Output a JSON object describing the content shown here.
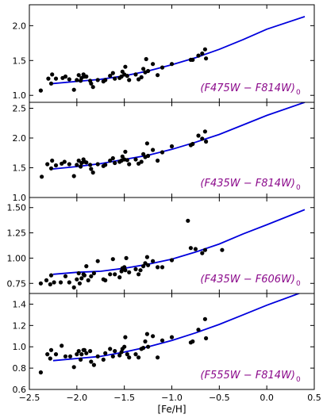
{
  "chart_data": {
    "type": "scatter",
    "xlabel": "[Fe/H]",
    "xlim": [
      -2.5,
      0.5
    ],
    "x_ticks": [
      "−2.5",
      "−2.0",
      "−1.5",
      "−1.0",
      "−0.5",
      "0.0",
      "0.5"
    ],
    "x_tick_values": [
      -2.5,
      -2.0,
      -1.5,
      -1.0,
      -0.5,
      0.0,
      0.5
    ],
    "line_color": "#0000dd",
    "point_color": "#000000",
    "label_color": "#8b0a8b",
    "panels": [
      {
        "label_main": "(F475W − F814W)",
        "label_sub": "0",
        "ylim": [
          0.9,
          2.3
        ],
        "y_ticks": [
          "1.0",
          "1.5",
          "2.0"
        ],
        "y_tick_values": [
          1.0,
          1.5,
          2.0
        ],
        "fit": [
          [
            -2.25,
            1.17
          ],
          [
            -2.0,
            1.2
          ],
          [
            -1.75,
            1.23
          ],
          [
            -1.5,
            1.28
          ],
          [
            -1.25,
            1.35
          ],
          [
            -1.0,
            1.44
          ],
          [
            -0.75,
            1.54
          ],
          [
            -0.5,
            1.66
          ],
          [
            -0.25,
            1.8
          ],
          [
            0.0,
            1.95
          ],
          [
            0.4,
            2.13
          ]
        ],
        "points": [
          [
            -2.38,
            1.07
          ],
          [
            -2.3,
            1.24
          ],
          [
            -2.27,
            1.17
          ],
          [
            -2.26,
            1.3
          ],
          [
            -2.22,
            1.24
          ],
          [
            -2.15,
            1.25
          ],
          [
            -2.12,
            1.27
          ],
          [
            -2.08,
            1.23
          ],
          [
            -2.03,
            1.08
          ],
          [
            -2.0,
            1.22
          ],
          [
            -1.98,
            1.29
          ],
          [
            -1.96,
            1.21
          ],
          [
            -1.95,
            1.25
          ],
          [
            -1.93,
            1.3
          ],
          [
            -1.92,
            1.27
          ],
          [
            -1.9,
            1.27
          ],
          [
            -1.86,
            1.21
          ],
          [
            -1.85,
            1.17
          ],
          [
            -1.83,
            1.12
          ],
          [
            -1.78,
            1.22
          ],
          [
            -1.72,
            1.2
          ],
          [
            -1.7,
            1.22
          ],
          [
            -1.65,
            1.28
          ],
          [
            -1.62,
            1.32
          ],
          [
            -1.6,
            1.24
          ],
          [
            -1.55,
            1.25
          ],
          [
            -1.53,
            1.27
          ],
          [
            -1.52,
            1.34
          ],
          [
            -1.5,
            1.3
          ],
          [
            -1.49,
            1.41
          ],
          [
            -1.47,
            1.28
          ],
          [
            -1.45,
            1.22
          ],
          [
            -1.38,
            1.3
          ],
          [
            -1.35,
            1.23
          ],
          [
            -1.32,
            1.26
          ],
          [
            -1.3,
            1.38
          ],
          [
            -1.28,
            1.33
          ],
          [
            -1.27,
            1.52
          ],
          [
            -1.25,
            1.35
          ],
          [
            -1.2,
            1.45
          ],
          [
            -1.15,
            1.29
          ],
          [
            -1.1,
            1.4
          ],
          [
            -1.0,
            1.45
          ],
          [
            -0.8,
            1.51
          ],
          [
            -0.78,
            1.51
          ],
          [
            -0.72,
            1.57
          ],
          [
            -0.68,
            1.6
          ],
          [
            -0.65,
            1.66
          ],
          [
            -0.64,
            1.53
          ]
        ]
      },
      {
        "label_main": "(F435W − F814W)",
        "label_sub": "0",
        "ylim": [
          1.0,
          2.6
        ],
        "y_ticks": [
          "1.0",
          "1.5",
          "2.0",
          "2.5"
        ],
        "y_tick_values": [
          1.0,
          1.5,
          2.0,
          2.5
        ],
        "fit": [
          [
            -2.25,
            1.48
          ],
          [
            -2.0,
            1.52
          ],
          [
            -1.75,
            1.57
          ],
          [
            -1.5,
            1.64
          ],
          [
            -1.25,
            1.71
          ],
          [
            -1.0,
            1.81
          ],
          [
            -0.75,
            1.93
          ],
          [
            -0.5,
            2.06
          ],
          [
            -0.25,
            2.22
          ],
          [
            0.0,
            2.38
          ],
          [
            0.4,
            2.6
          ]
        ],
        "points": [
          [
            -2.37,
            1.35
          ],
          [
            -2.31,
            1.56
          ],
          [
            -2.27,
            1.49
          ],
          [
            -2.26,
            1.62
          ],
          [
            -2.22,
            1.54
          ],
          [
            -2.16,
            1.57
          ],
          [
            -2.13,
            1.6
          ],
          [
            -2.08,
            1.56
          ],
          [
            -2.03,
            1.36
          ],
          [
            -2.0,
            1.55
          ],
          [
            -1.98,
            1.62
          ],
          [
            -1.96,
            1.52
          ],
          [
            -1.95,
            1.58
          ],
          [
            -1.93,
            1.64
          ],
          [
            -1.92,
            1.6
          ],
          [
            -1.9,
            1.59
          ],
          [
            -1.86,
            1.55
          ],
          [
            -1.85,
            1.48
          ],
          [
            -1.83,
            1.42
          ],
          [
            -1.78,
            1.56
          ],
          [
            -1.72,
            1.53
          ],
          [
            -1.7,
            1.55
          ],
          [
            -1.65,
            1.62
          ],
          [
            -1.62,
            1.66
          ],
          [
            -1.6,
            1.58
          ],
          [
            -1.55,
            1.6
          ],
          [
            -1.53,
            1.62
          ],
          [
            -1.52,
            1.69
          ],
          [
            -1.5,
            1.64
          ],
          [
            -1.49,
            1.77
          ],
          [
            -1.47,
            1.63
          ],
          [
            -1.45,
            1.56
          ],
          [
            -1.38,
            1.64
          ],
          [
            -1.35,
            1.57
          ],
          [
            -1.32,
            1.6
          ],
          [
            -1.3,
            1.73
          ],
          [
            -1.28,
            1.68
          ],
          [
            -1.26,
            1.91
          ],
          [
            -1.25,
            1.7
          ],
          [
            -1.2,
            1.8
          ],
          [
            -1.15,
            1.62
          ],
          [
            -1.1,
            1.76
          ],
          [
            -1.0,
            1.86
          ],
          [
            -0.8,
            1.88
          ],
          [
            -0.78,
            1.9
          ],
          [
            -0.72,
            2.04
          ],
          [
            -0.68,
            1.99
          ],
          [
            -0.65,
            2.11
          ],
          [
            -0.64,
            1.94
          ]
        ]
      },
      {
        "label_main": "(F435W − F606W)",
        "label_sub": "0",
        "ylim": [
          0.65,
          1.6
        ],
        "y_ticks": [
          "0.75",
          "1.00",
          "1.25",
          "1.50"
        ],
        "y_tick_values": [
          0.75,
          1.0,
          1.25,
          1.5
        ],
        "fit": [
          [
            -2.25,
            0.84
          ],
          [
            -2.0,
            0.86
          ],
          [
            -1.75,
            0.87
          ],
          [
            -1.5,
            0.9
          ],
          [
            -1.25,
            0.94
          ],
          [
            -1.0,
            0.99
          ],
          [
            -0.75,
            1.06
          ],
          [
            -0.5,
            1.14
          ],
          [
            -0.25,
            1.24
          ],
          [
            0.0,
            1.33
          ],
          [
            0.4,
            1.48
          ]
        ],
        "points": [
          [
            -2.38,
            0.75
          ],
          [
            -2.32,
            0.78
          ],
          [
            -2.28,
            0.74
          ],
          [
            -2.27,
            0.83
          ],
          [
            -2.24,
            0.76
          ],
          [
            -2.17,
            0.76
          ],
          [
            -2.12,
            0.82
          ],
          [
            -2.08,
            0.76
          ],
          [
            -2.03,
            0.71
          ],
          [
            -2.0,
            0.79
          ],
          [
            -1.98,
            0.85
          ],
          [
            -1.97,
            0.75
          ],
          [
            -1.95,
            0.8
          ],
          [
            -1.93,
            0.84
          ],
          [
            -1.92,
            0.83
          ],
          [
            -1.9,
            0.92
          ],
          [
            -1.88,
            0.78
          ],
          [
            -1.85,
            0.82
          ],
          [
            -1.82,
            0.85
          ],
          [
            -1.78,
            0.97
          ],
          [
            -1.72,
            0.79
          ],
          [
            -1.7,
            0.78
          ],
          [
            -1.65,
            0.84
          ],
          [
            -1.62,
            0.99
          ],
          [
            -1.6,
            0.84
          ],
          [
            -1.55,
            0.81
          ],
          [
            -1.53,
            0.87
          ],
          [
            -1.52,
            0.9
          ],
          [
            -1.5,
            0.91
          ],
          [
            -1.49,
            0.88
          ],
          [
            -1.48,
            1.0
          ],
          [
            -1.45,
            0.86
          ],
          [
            -1.38,
            0.89
          ],
          [
            -1.35,
            0.84
          ],
          [
            -1.33,
            0.88
          ],
          [
            -1.3,
            0.92
          ],
          [
            -1.28,
            0.95
          ],
          [
            -1.26,
            1.01
          ],
          [
            -1.25,
            0.93
          ],
          [
            -1.2,
            0.97
          ],
          [
            -1.15,
            0.91
          ],
          [
            -1.1,
            0.91
          ],
          [
            -1.0,
            0.98
          ],
          [
            -0.83,
            1.37
          ],
          [
            -0.8,
            1.1
          ],
          [
            -0.75,
            1.09
          ],
          [
            -0.68,
            1.05
          ],
          [
            -0.65,
            1.08
          ],
          [
            -0.47,
            1.08
          ]
        ]
      },
      {
        "label_main": "(F555W − F814W)",
        "label_sub": "0",
        "ylim": [
          0.6,
          1.5
        ],
        "y_ticks": [
          "0.6",
          "0.8",
          "1.0",
          "1.2",
          "1.4"
        ],
        "y_tick_values": [
          0.6,
          0.8,
          1.0,
          1.2,
          1.4
        ],
        "fit": [
          [
            -2.25,
            0.87
          ],
          [
            -2.0,
            0.89
          ],
          [
            -1.75,
            0.91
          ],
          [
            -1.5,
            0.95
          ],
          [
            -1.25,
            1.0
          ],
          [
            -1.0,
            1.06
          ],
          [
            -0.75,
            1.13
          ],
          [
            -0.5,
            1.21
          ],
          [
            -0.25,
            1.3
          ],
          [
            0.0,
            1.39
          ],
          [
            0.4,
            1.52
          ]
        ],
        "points": [
          [
            -2.38,
            0.76
          ],
          [
            -2.31,
            0.93
          ],
          [
            -2.28,
            0.89
          ],
          [
            -2.27,
            0.97
          ],
          [
            -2.22,
            0.93
          ],
          [
            -2.16,
            1.01
          ],
          [
            -2.12,
            0.91
          ],
          [
            -2.07,
            0.91
          ],
          [
            -2.03,
            0.81
          ],
          [
            -2.0,
            0.93
          ],
          [
            -1.98,
            0.96
          ],
          [
            -1.96,
            0.88
          ],
          [
            -1.95,
            0.93
          ],
          [
            -1.93,
            0.97
          ],
          [
            -1.92,
            0.97
          ],
          [
            -1.9,
            0.94
          ],
          [
            -1.86,
            0.96
          ],
          [
            -1.85,
            0.86
          ],
          [
            -1.82,
            0.83
          ],
          [
            -1.78,
            0.91
          ],
          [
            -1.72,
            0.88
          ],
          [
            -1.7,
            0.94
          ],
          [
            -1.65,
            0.98
          ],
          [
            -1.62,
            0.91
          ],
          [
            -1.6,
            0.96
          ],
          [
            -1.55,
            0.92
          ],
          [
            -1.53,
            0.95
          ],
          [
            -1.52,
            0.98
          ],
          [
            -1.5,
            1.0
          ],
          [
            -1.49,
            1.09
          ],
          [
            -1.47,
            0.93
          ],
          [
            -1.45,
            0.9
          ],
          [
            -1.38,
            0.93
          ],
          [
            -1.35,
            0.9
          ],
          [
            -1.32,
            0.98
          ],
          [
            -1.3,
            0.99
          ],
          [
            -1.28,
            1.05
          ],
          [
            -1.26,
            1.12
          ],
          [
            -1.25,
            1.0
          ],
          [
            -1.2,
            1.1
          ],
          [
            -1.15,
            0.9
          ],
          [
            -1.1,
            1.06
          ],
          [
            -1.0,
            1.09
          ],
          [
            -0.8,
            1.04
          ],
          [
            -0.78,
            1.05
          ],
          [
            -0.72,
            1.16
          ],
          [
            -0.65,
            1.26
          ],
          [
            -0.64,
            1.08
          ]
        ]
      }
    ]
  }
}
